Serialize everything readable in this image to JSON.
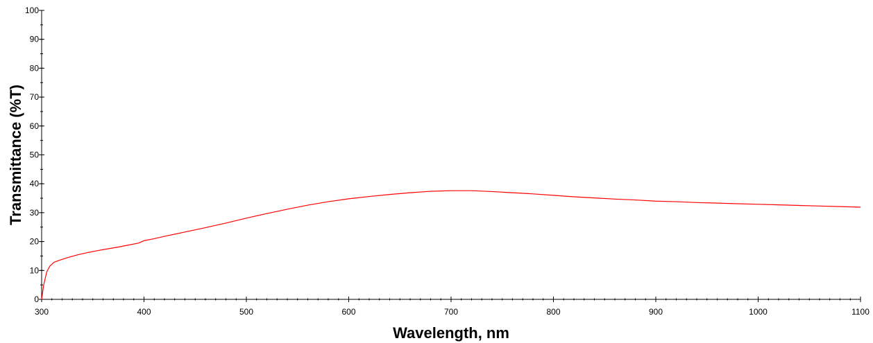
{
  "chart_data": {
    "type": "line",
    "title": "",
    "xlabel": "Wavelength, nm",
    "ylabel": "Transmittance (%T)",
    "xlim": [
      300,
      1100
    ],
    "ylim": [
      0,
      100
    ],
    "x_ticks": [
      300,
      400,
      500,
      600,
      700,
      800,
      900,
      1000,
      1100
    ],
    "y_ticks": [
      0,
      10,
      20,
      30,
      40,
      50,
      60,
      70,
      80,
      90,
      100
    ],
    "x_minor_step": 10,
    "y_minor_step": 5,
    "grid": false,
    "legend": "none",
    "series": [
      {
        "color": "#ff0000",
        "x": [
          300,
          302,
          305,
          308,
          312,
          318,
          325,
          335,
          345,
          355,
          365,
          375,
          385,
          395,
          400,
          410,
          420,
          440,
          460,
          480,
          500,
          520,
          540,
          560,
          580,
          600,
          620,
          640,
          660,
          680,
          700,
          720,
          740,
          760,
          780,
          800,
          820,
          840,
          860,
          880,
          900,
          920,
          940,
          960,
          980,
          1000,
          1020,
          1040,
          1060,
          1080,
          1100
        ],
        "y": [
          0,
          5,
          9.5,
          11.5,
          12.8,
          13.6,
          14.4,
          15.4,
          16.2,
          16.9,
          17.5,
          18.1,
          18.8,
          19.5,
          20.3,
          21,
          21.8,
          23.3,
          24.8,
          26.4,
          28.1,
          29.7,
          31.2,
          32.6,
          33.8,
          34.8,
          35.6,
          36.3,
          36.9,
          37.4,
          37.6,
          37.6,
          37.3,
          36.9,
          36.5,
          36,
          35.5,
          35.1,
          34.7,
          34.4,
          34,
          33.8,
          33.5,
          33.3,
          33.1,
          32.9,
          32.7,
          32.5,
          32.3,
          32.1,
          31.9
        ]
      }
    ]
  }
}
